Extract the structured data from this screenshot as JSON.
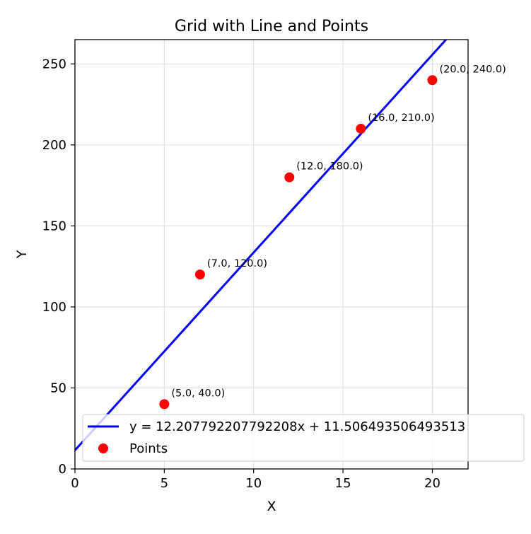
{
  "chart_data": {
    "type": "scatter",
    "title": "Grid with Line and Points",
    "xlabel": "X",
    "ylabel": "Y",
    "xlim": [
      0,
      22
    ],
    "ylim": [
      0,
      265
    ],
    "xticks": [
      0,
      5,
      10,
      15,
      20
    ],
    "yticks": [
      0,
      50,
      100,
      150,
      200,
      250
    ],
    "grid": true,
    "legend_position": "lower-left",
    "series": [
      {
        "name": "y = 12.207792207792208x + 11.506493506493513",
        "kind": "line",
        "color": "#0000ff",
        "slope": 12.207792207792208,
        "intercept": 11.506493506493513
      },
      {
        "name": "Points",
        "kind": "scatter",
        "color": "#ff0000",
        "points": [
          {
            "x": 5.0,
            "y": 40.0,
            "label": "(5.0, 40.0)"
          },
          {
            "x": 7.0,
            "y": 120.0,
            "label": "(7.0, 120.0)"
          },
          {
            "x": 12.0,
            "y": 180.0,
            "label": "(12.0, 180.0)"
          },
          {
            "x": 16.0,
            "y": 210.0,
            "label": "(16.0, 210.0)"
          },
          {
            "x": 20.0,
            "y": 240.0,
            "label": "(20.0, 240.0)"
          }
        ]
      }
    ]
  }
}
